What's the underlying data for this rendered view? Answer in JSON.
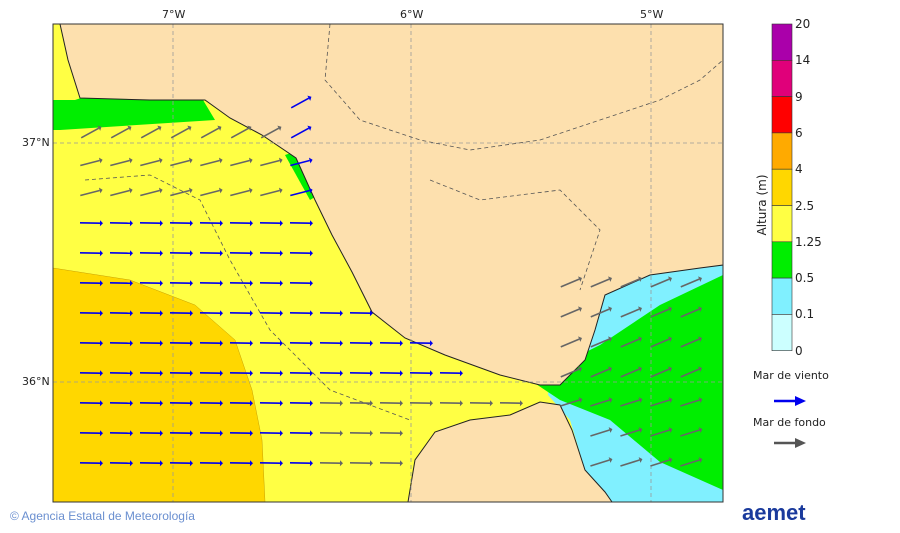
{
  "axes": {
    "lon_labels": [
      "7°W",
      "6°W",
      "5°W"
    ],
    "lat_labels": [
      "37°N",
      "36°N"
    ]
  },
  "colorbar": {
    "title": "Altura (m)",
    "ticks": [
      "20",
      "14",
      "9",
      "6",
      "4",
      "2.5",
      "1.25",
      "0.5",
      "0.1",
      "0"
    ],
    "colors": [
      "#aa00aa",
      "#e0007a",
      "#ff0000",
      "#ffaa00",
      "#ffd700",
      "#ffff44",
      "#00ee00",
      "#80f0ff",
      "#ccffff"
    ]
  },
  "legend": {
    "wind_sea": "Mar de viento",
    "swell": "Mar de fondo",
    "wind_sea_color": "#0000ee",
    "swell_color": "#555555"
  },
  "colors": {
    "land": "#fde0ae",
    "sea_main": "#ffff44",
    "sea_high": "#ffd700",
    "green": "#00ee00",
    "cyan": "#80f0ff"
  },
  "footer": {
    "credit": "© Agencia Estatal de Meteorología",
    "logo": "aemet"
  }
}
